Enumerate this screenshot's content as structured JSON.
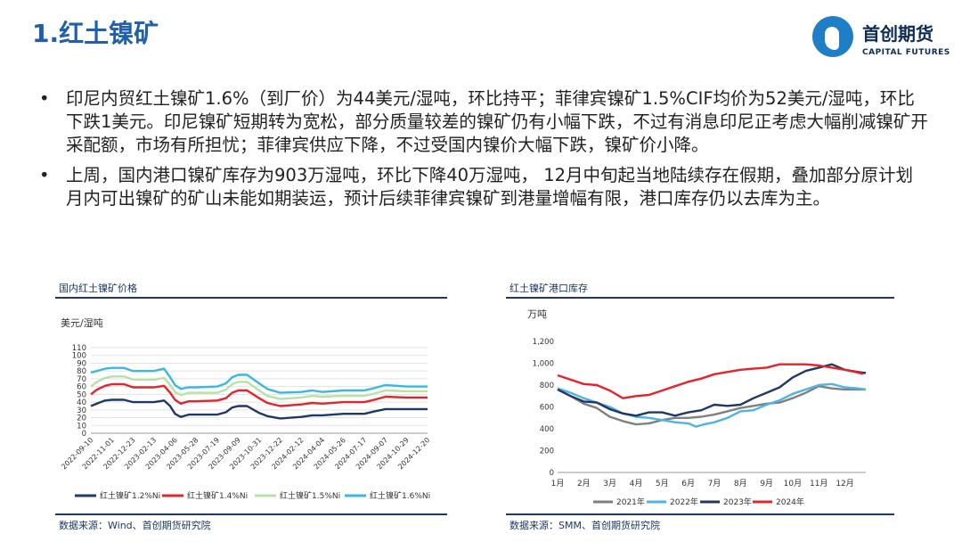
{
  "header": {
    "title": "1.红土镍矿"
  },
  "logo": {
    "cn": "首创期货",
    "en": "CAPITAL FUTURES"
  },
  "bullets": [
    "印尼内贸红土镍矿1.6%（到厂价）为44美元/湿吨，环比持平；菲律宾镍矿1.5%CIF均价为52美元/湿吨，环比下跌1美元。印尼镍矿短期转为宽松，部分质量较差的镍矿仍有小幅下跌，不过有消息印尼正考虑大幅削减镍矿开采配额，市场有所担忧；菲律宾供应下降，不过受国内镍价大幅下跌，镍矿价小降。",
    "上周，国内港口镍矿库存为903万湿吨，环比下降40万湿吨， 12月中旬起当地陆续存在假期，叠加部分原计划月内可出镍矿的矿山未能如期装运，预计后续菲律宾镍矿到港量增幅有限，港口库存仍以去库为主。"
  ],
  "bullet_symbol": "•",
  "left_panel": {
    "title": "国内红土镍矿价格",
    "unit": "美元/湿吨",
    "source": "数据来源：Wind、首创期货研究院"
  },
  "right_panel": {
    "title": "红土镍矿港口库存",
    "unit": "万吨",
    "source": "数据来源：SMM、首创期货研究院"
  },
  "colors": {
    "brand": "#1f7fc6",
    "title": "#1f5fae",
    "navy": "#1f3864"
  },
  "chart_data": [
    {
      "type": "line",
      "ylim": [
        0,
        110
      ],
      "yticks": [
        0,
        10,
        20,
        30,
        40,
        50,
        60,
        70,
        80,
        90,
        100,
        110
      ],
      "xlim": [
        "2022-09-10",
        "2024-12-20"
      ],
      "x_tick_labels": [
        "2022-09-10",
        "2022-11-01",
        "2022-12-23",
        "2023-02-13",
        "2023-04-06",
        "2023-05-28",
        "2023-07-19",
        "2023-09-09",
        "2023-10-31",
        "2023-12-22",
        "2024-02-12",
        "2024-04-04",
        "2024-05-26",
        "2024-07-17",
        "2024-09-07",
        "2024-10-29",
        "2024-12-20"
      ],
      "grid": true,
      "legend": "bottom",
      "series": [
        {
          "name": "红土镍矿1.2%Ni",
          "color": "#1f3864",
          "points": [
            [
              "2022-09-10",
              35
            ],
            [
              "2022-09-25",
              38
            ],
            [
              "2022-10-15",
              42
            ],
            [
              "2022-11-01",
              43
            ],
            [
              "2022-12-01",
              43
            ],
            [
              "2022-12-23",
              40
            ],
            [
              "2023-02-13",
              40
            ],
            [
              "2023-03-10",
              42
            ],
            [
              "2023-03-25",
              35
            ],
            [
              "2023-04-06",
              25
            ],
            [
              "2023-04-20",
              21
            ],
            [
              "2023-05-10",
              24
            ],
            [
              "2023-05-28",
              24
            ],
            [
              "2023-07-19",
              24
            ],
            [
              "2023-08-10",
              27
            ],
            [
              "2023-08-25",
              33
            ],
            [
              "2023-09-09",
              35
            ],
            [
              "2023-10-01",
              35
            ],
            [
              "2023-10-31",
              26
            ],
            [
              "2023-11-20",
              22
            ],
            [
              "2023-12-22",
              19
            ],
            [
              "2024-02-12",
              21
            ],
            [
              "2024-03-10",
              23
            ],
            [
              "2024-04-04",
              23
            ],
            [
              "2024-05-26",
              25
            ],
            [
              "2024-07-17",
              25
            ],
            [
              "2024-08-10",
              28
            ],
            [
              "2024-09-07",
              31
            ],
            [
              "2024-10-29",
              31
            ],
            [
              "2024-12-20",
              31
            ]
          ]
        },
        {
          "name": "红土镍矿1.4%Ni",
          "color": "#e3242b",
          "points": [
            [
              "2022-09-10",
              50
            ],
            [
              "2022-09-25",
              56
            ],
            [
              "2022-10-15",
              61
            ],
            [
              "2022-11-01",
              63
            ],
            [
              "2022-12-01",
              63
            ],
            [
              "2022-12-23",
              59
            ],
            [
              "2023-02-13",
              59
            ],
            [
              "2023-03-10",
              61
            ],
            [
              "2023-03-25",
              52
            ],
            [
              "2023-04-06",
              43
            ],
            [
              "2023-04-20",
              38
            ],
            [
              "2023-05-10",
              41
            ],
            [
              "2023-05-28",
              41
            ],
            [
              "2023-07-19",
              42
            ],
            [
              "2023-08-10",
              45
            ],
            [
              "2023-08-25",
              52
            ],
            [
              "2023-09-09",
              55
            ],
            [
              "2023-10-01",
              55
            ],
            [
              "2023-10-31",
              45
            ],
            [
              "2023-11-20",
              39
            ],
            [
              "2023-12-22",
              35
            ],
            [
              "2024-02-12",
              37
            ],
            [
              "2024-03-10",
              39
            ],
            [
              "2024-04-04",
              38
            ],
            [
              "2024-05-26",
              40
            ],
            [
              "2024-07-17",
              40
            ],
            [
              "2024-08-10",
              43
            ],
            [
              "2024-09-07",
              47
            ],
            [
              "2024-10-29",
              46
            ],
            [
              "2024-12-20",
              46
            ]
          ]
        },
        {
          "name": "红土镍矿1.5%Ni",
          "color": "#b8e0a8",
          "points": [
            [
              "2022-09-10",
              60
            ],
            [
              "2022-09-25",
              66
            ],
            [
              "2022-10-15",
              71
            ],
            [
              "2022-11-01",
              73
            ],
            [
              "2022-12-01",
              73
            ],
            [
              "2022-12-23",
              69
            ],
            [
              "2023-02-13",
              69
            ],
            [
              "2023-03-10",
              71
            ],
            [
              "2023-03-25",
              62
            ],
            [
              "2023-04-06",
              53
            ],
            [
              "2023-04-20",
              49
            ],
            [
              "2023-05-10",
              52
            ],
            [
              "2023-05-28",
              52
            ],
            [
              "2023-07-19",
              52
            ],
            [
              "2023-08-10",
              56
            ],
            [
              "2023-08-25",
              63
            ],
            [
              "2023-09-09",
              66
            ],
            [
              "2023-10-01",
              66
            ],
            [
              "2023-10-31",
              55
            ],
            [
              "2023-11-20",
              48
            ],
            [
              "2023-12-22",
              44
            ],
            [
              "2024-02-12",
              46
            ],
            [
              "2024-03-10",
              48
            ],
            [
              "2024-04-04",
              47
            ],
            [
              "2024-05-26",
              48
            ],
            [
              "2024-07-17",
              48
            ],
            [
              "2024-08-10",
              51
            ],
            [
              "2024-09-07",
              55
            ],
            [
              "2024-10-29",
              54
            ],
            [
              "2024-12-20",
              54
            ]
          ]
        },
        {
          "name": "红土镍矿1.6%Ni",
          "color": "#3cb6e3",
          "points": [
            [
              "2022-09-10",
              78
            ],
            [
              "2022-09-25",
              80
            ],
            [
              "2022-10-15",
              83
            ],
            [
              "2022-11-01",
              84
            ],
            [
              "2022-12-01",
              84
            ],
            [
              "2022-12-23",
              80
            ],
            [
              "2023-02-13",
              80
            ],
            [
              "2023-03-10",
              83
            ],
            [
              "2023-03-25",
              72
            ],
            [
              "2023-04-06",
              62
            ],
            [
              "2023-04-20",
              57
            ],
            [
              "2023-05-10",
              59
            ],
            [
              "2023-05-28",
              59
            ],
            [
              "2023-07-19",
              60
            ],
            [
              "2023-08-10",
              64
            ],
            [
              "2023-08-25",
              72
            ],
            [
              "2023-09-09",
              75
            ],
            [
              "2023-10-01",
              75
            ],
            [
              "2023-10-31",
              64
            ],
            [
              "2023-11-20",
              57
            ],
            [
              "2023-12-22",
              52
            ],
            [
              "2024-02-12",
              53
            ],
            [
              "2024-03-10",
              55
            ],
            [
              "2024-04-04",
              53
            ],
            [
              "2024-05-26",
              55
            ],
            [
              "2024-07-17",
              55
            ],
            [
              "2024-08-10",
              58
            ],
            [
              "2024-09-07",
              62
            ],
            [
              "2024-10-29",
              60
            ],
            [
              "2024-12-20",
              60
            ]
          ]
        }
      ]
    },
    {
      "type": "line",
      "ylim": [
        0,
        1200
      ],
      "yticks": [
        0,
        200,
        400,
        600,
        800,
        1000,
        1200
      ],
      "y_tick_labels": [
        "0",
        "200",
        "400",
        "600",
        "800",
        "1,000",
        "1,200"
      ],
      "x_range": [
        1,
        12.8
      ],
      "x_ticks": [
        1,
        2,
        3,
        4,
        5,
        6,
        7,
        8,
        9,
        10,
        11,
        12
      ],
      "x_tick_labels": [
        "1月",
        "2月",
        "3月",
        "4月",
        "5月",
        "6月",
        "7月",
        "8月",
        "9月",
        "10月",
        "11月",
        "12月"
      ],
      "grid": false,
      "legend": "bottom",
      "series": [
        {
          "name": "2021年",
          "color": "#808080",
          "points": [
            [
              1,
              760
            ],
            [
              1.5,
              700
            ],
            [
              2,
              630
            ],
            [
              2.5,
              590
            ],
            [
              3,
              510
            ],
            [
              3.5,
              470
            ],
            [
              4,
              440
            ],
            [
              4.5,
              450
            ],
            [
              5,
              480
            ],
            [
              5.5,
              500
            ],
            [
              6,
              500
            ],
            [
              6.5,
              510
            ],
            [
              7,
              530
            ],
            [
              7.5,
              560
            ],
            [
              8,
              590
            ],
            [
              8.5,
              610
            ],
            [
              9,
              630
            ],
            [
              9.5,
              640
            ],
            [
              10,
              680
            ],
            [
              10.5,
              730
            ],
            [
              11,
              790
            ],
            [
              11.5,
              770
            ],
            [
              12,
              760
            ],
            [
              12.5,
              760
            ],
            [
              12.8,
              760
            ]
          ]
        },
        {
          "name": "2022年",
          "color": "#4fb3e6",
          "points": [
            [
              1,
              770
            ],
            [
              1.5,
              730
            ],
            [
              2,
              680
            ],
            [
              2.5,
              640
            ],
            [
              3,
              600
            ],
            [
              3.5,
              540
            ],
            [
              4,
              510
            ],
            [
              4.5,
              500
            ],
            [
              5,
              480
            ],
            [
              5.5,
              460
            ],
            [
              6,
              450
            ],
            [
              6.3,
              420
            ],
            [
              6.6,
              440
            ],
            [
              7,
              460
            ],
            [
              7.5,
              500
            ],
            [
              8,
              560
            ],
            [
              8.5,
              570
            ],
            [
              9,
              620
            ],
            [
              9.5,
              660
            ],
            [
              10,
              720
            ],
            [
              10.5,
              760
            ],
            [
              11,
              800
            ],
            [
              11.5,
              810
            ],
            [
              12,
              780
            ],
            [
              12.5,
              770
            ],
            [
              12.8,
              760
            ]
          ]
        },
        {
          "name": "2023年",
          "color": "#1f3864",
          "points": [
            [
              1,
              760
            ],
            [
              1.5,
              700
            ],
            [
              2,
              650
            ],
            [
              2.5,
              640
            ],
            [
              3,
              580
            ],
            [
              3.5,
              540
            ],
            [
              4,
              520
            ],
            [
              4.5,
              550
            ],
            [
              5,
              550
            ],
            [
              5.5,
              520
            ],
            [
              6,
              550
            ],
            [
              6.5,
              570
            ],
            [
              7,
              620
            ],
            [
              7.5,
              610
            ],
            [
              8,
              620
            ],
            [
              8.5,
              680
            ],
            [
              9,
              730
            ],
            [
              9.5,
              780
            ],
            [
              10,
              870
            ],
            [
              10.5,
              930
            ],
            [
              11,
              960
            ],
            [
              11.5,
              990
            ],
            [
              12,
              940
            ],
            [
              12.5,
              920
            ],
            [
              12.8,
              910
            ]
          ]
        },
        {
          "name": "2024年",
          "color": "#e3242b",
          "points": [
            [
              1,
              890
            ],
            [
              1.5,
              850
            ],
            [
              2,
              810
            ],
            [
              2.5,
              800
            ],
            [
              3,
              750
            ],
            [
              3.5,
              680
            ],
            [
              4,
              700
            ],
            [
              4.5,
              710
            ],
            [
              5,
              750
            ],
            [
              5.5,
              790
            ],
            [
              6,
              830
            ],
            [
              6.5,
              860
            ],
            [
              7,
              900
            ],
            [
              7.5,
              920
            ],
            [
              8,
              940
            ],
            [
              8.5,
              950
            ],
            [
              9,
              960
            ],
            [
              9.5,
              990
            ],
            [
              10,
              990
            ],
            [
              10.5,
              990
            ],
            [
              11,
              980
            ],
            [
              11.5,
              960
            ],
            [
              12,
              940
            ],
            [
              12.4,
              920
            ],
            [
              12.7,
              903
            ]
          ]
        }
      ]
    }
  ]
}
